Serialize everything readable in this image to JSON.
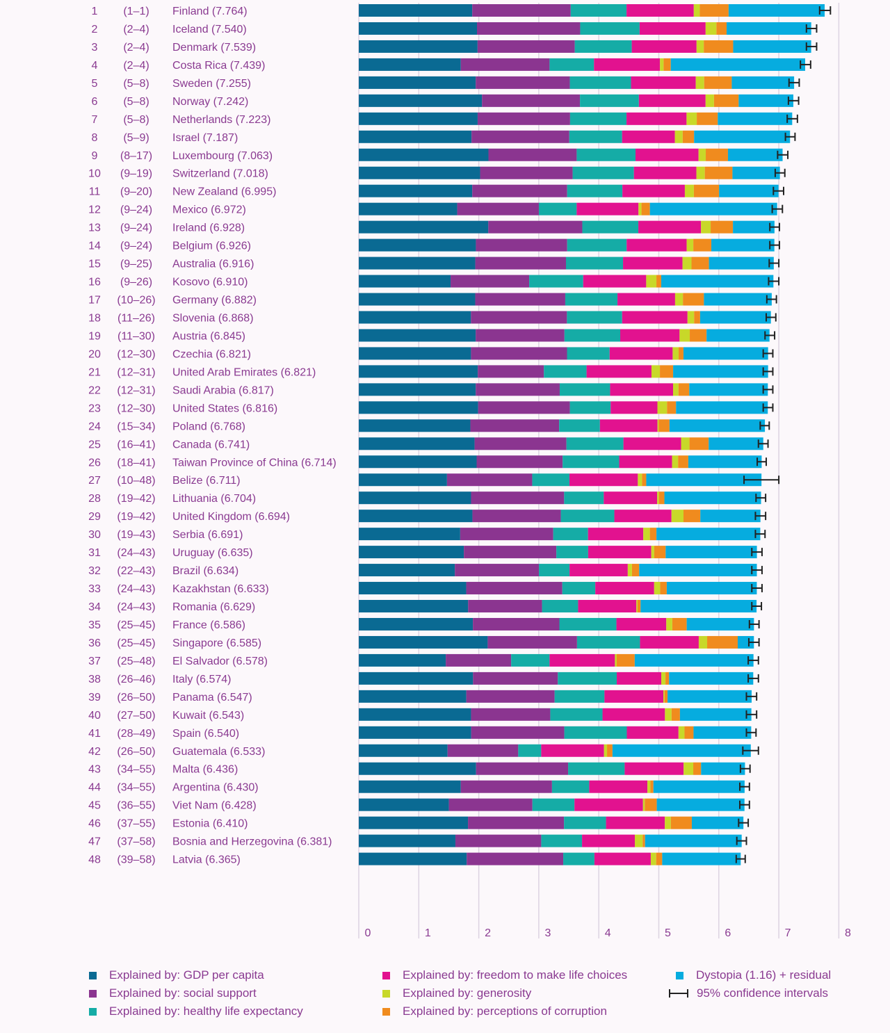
{
  "chart_data": {
    "type": "bar",
    "orientation": "horizontal",
    "stacked": true,
    "title": "",
    "xlabel": "",
    "ylabel": "",
    "xlim": [
      0,
      8
    ],
    "x_ticks": [
      "0",
      "1",
      "2",
      "3",
      "4",
      "5",
      "6",
      "7",
      "8"
    ],
    "components": [
      {
        "key": "gdp",
        "name": "Explained by: GDP per capita",
        "color": "#0a6a93"
      },
      {
        "key": "social",
        "name": "Explained by: social support",
        "color": "#8b3590"
      },
      {
        "key": "health",
        "name": "Explained by: healthy life expectancy",
        "color": "#15aca6"
      },
      {
        "key": "freedom",
        "name": "Explained by: freedom to make life choices",
        "color": "#e2128f"
      },
      {
        "key": "generosity",
        "name": "Explained by: generosity",
        "color": "#c8d829"
      },
      {
        "key": "corruption",
        "name": "Explained by: perceptions of corruption",
        "color": "#f08b1e"
      },
      {
        "key": "dystopia",
        "name": "Dystopia (1.16) + residual",
        "color": "#06acdf"
      }
    ],
    "ci_legend_label": "95% confidence intervals",
    "rows": [
      {
        "rank": "1",
        "range": "(1–1)",
        "label": "Finland (7.764)",
        "score": 7.764,
        "ci": [
          7.68,
          7.86
        ],
        "values": [
          1.89,
          1.64,
          0.93,
          1.12,
          0.1,
          0.48,
          1.6
        ]
      },
      {
        "rank": "2",
        "range": "(2–4)",
        "label": "Iceland (7.540)",
        "score": 7.54,
        "ci": [
          7.46,
          7.63
        ],
        "values": [
          1.97,
          1.72,
          0.99,
          1.1,
          0.18,
          0.17,
          1.41
        ]
      },
      {
        "rank": "3",
        "range": "(2–4)",
        "label": "Denmark (7.539)",
        "score": 7.539,
        "ci": [
          7.46,
          7.63
        ],
        "values": [
          1.98,
          1.62,
          0.95,
          1.08,
          0.12,
          0.49,
          1.3
        ]
      },
      {
        "rank": "4",
        "range": "(2–4)",
        "label": "Costa Rica (7.439)",
        "score": 7.439,
        "ci": [
          7.36,
          7.53
        ],
        "values": [
          1.7,
          1.48,
          0.74,
          1.1,
          0.06,
          0.12,
          2.24
        ]
      },
      {
        "rank": "5",
        "range": "(5–8)",
        "label": "Sweden (7.255)",
        "score": 7.255,
        "ci": [
          7.17,
          7.34
        ],
        "values": [
          1.95,
          1.57,
          1.02,
          1.08,
          0.14,
          0.46,
          1.04
        ]
      },
      {
        "rank": "6",
        "range": "(5–8)",
        "label": "Norway (7.242)",
        "score": 7.242,
        "ci": [
          7.16,
          7.33
        ],
        "values": [
          2.05,
          1.63,
          0.98,
          1.11,
          0.14,
          0.41,
          0.91
        ]
      },
      {
        "rank": "7",
        "range": "(5–8)",
        "label": "Netherlands (7.223)",
        "score": 7.223,
        "ci": [
          7.14,
          7.31
        ],
        "values": [
          1.98,
          1.54,
          0.94,
          1.0,
          0.17,
          0.35,
          1.24
        ]
      },
      {
        "rank": "8",
        "range": "(5–9)",
        "label": "Israel (7.187)",
        "score": 7.187,
        "ci": [
          7.11,
          7.27
        ],
        "values": [
          1.88,
          1.63,
          0.88,
          0.88,
          0.13,
          0.19,
          1.6
        ]
      },
      {
        "rank": "9",
        "range": "(8–17)",
        "label": "Luxembourg (7.063)",
        "score": 7.063,
        "ci": [
          6.98,
          7.15
        ],
        "values": [
          2.16,
          1.47,
          0.98,
          1.05,
          0.12,
          0.37,
          0.91
        ]
      },
      {
        "rank": "10",
        "range": "(9–19)",
        "label": "Switzerland (7.018)",
        "score": 7.018,
        "ci": [
          6.94,
          7.1
        ],
        "values": [
          2.02,
          1.54,
          1.02,
          1.04,
          0.14,
          0.46,
          0.79
        ]
      },
      {
        "rank": "11",
        "range": "(9–20)",
        "label": "New Zealand (6.995)",
        "score": 6.995,
        "ci": [
          6.91,
          7.08
        ],
        "values": [
          1.89,
          1.58,
          0.92,
          1.04,
          0.15,
          0.42,
          0.99
        ]
      },
      {
        "rank": "12",
        "range": "(9–24)",
        "label": "Mexico (6.972)",
        "score": 6.972,
        "ci": [
          6.89,
          7.06
        ],
        "values": [
          1.64,
          1.36,
          0.63,
          1.03,
          0.05,
          0.14,
          2.12
        ]
      },
      {
        "rank": "13",
        "range": "(9–24)",
        "label": "Ireland (6.928)",
        "score": 6.928,
        "ci": [
          6.85,
          7.01
        ],
        "values": [
          2.15,
          1.56,
          0.93,
          1.04,
          0.16,
          0.37,
          0.69
        ]
      },
      {
        "rank": "14",
        "range": "(9–24)",
        "label": "Belgium (6.926)",
        "score": 6.926,
        "ci": [
          6.85,
          7.01
        ],
        "values": [
          1.95,
          1.52,
          0.99,
          1.0,
          0.11,
          0.3,
          1.05
        ]
      },
      {
        "rank": "15",
        "range": "(9–25)",
        "label": "Australia (6.916)",
        "score": 6.916,
        "ci": [
          6.84,
          7.0
        ],
        "values": [
          1.94,
          1.51,
          0.95,
          0.99,
          0.15,
          0.29,
          1.08
        ]
      },
      {
        "rank": "16",
        "range": "(9–26)",
        "label": "Kosovo (6.910)",
        "score": 6.91,
        "ci": [
          6.83,
          7.0
        ],
        "values": [
          1.53,
          1.31,
          0.9,
          1.05,
          0.17,
          0.08,
          1.87
        ]
      },
      {
        "rank": "17",
        "range": "(10–26)",
        "label": "Germany (6.882)",
        "score": 6.882,
        "ci": [
          6.8,
          6.96
        ],
        "values": [
          1.94,
          1.5,
          0.87,
          0.96,
          0.13,
          0.35,
          1.13
        ]
      },
      {
        "rank": "18",
        "range": "(11–26)",
        "label": "Slovenia (6.868)",
        "score": 6.868,
        "ci": [
          6.79,
          6.95
        ],
        "values": [
          1.87,
          1.6,
          0.92,
          1.09,
          0.11,
          0.1,
          1.18
        ]
      },
      {
        "rank": "19",
        "range": "(11–30)",
        "label": "Austria (6.845)",
        "score": 6.845,
        "ci": [
          6.77,
          6.93
        ],
        "values": [
          1.95,
          1.48,
          0.93,
          0.99,
          0.17,
          0.28,
          1.05
        ]
      },
      {
        "rank": "20",
        "range": "(12–30)",
        "label": "Czechia (6.821)",
        "score": 6.821,
        "ci": [
          6.74,
          6.9
        ],
        "values": [
          1.87,
          1.6,
          0.71,
          1.05,
          0.1,
          0.08,
          1.41
        ]
      },
      {
        "rank": "21",
        "range": "(12–31)",
        "label": "United Arab Emirates (6.821)",
        "score": 6.821,
        "ci": [
          6.74,
          6.9
        ],
        "values": [
          1.98,
          1.1,
          0.71,
          1.08,
          0.14,
          0.22,
          1.58
        ]
      },
      {
        "rank": "22",
        "range": "(12–31)",
        "label": "Saudi Arabia (6.817)",
        "score": 6.817,
        "ci": [
          6.74,
          6.9
        ],
        "values": [
          1.95,
          1.4,
          0.84,
          1.05,
          0.09,
          0.18,
          1.31
        ]
      },
      {
        "rank": "23",
        "range": "(12–30)",
        "label": "United States (6.816)",
        "score": 6.816,
        "ci": [
          6.74,
          6.9
        ],
        "values": [
          1.99,
          1.53,
          0.68,
          0.78,
          0.16,
          0.15,
          1.53
        ]
      },
      {
        "rank": "24",
        "range": "(15–34)",
        "label": "Poland (6.768)",
        "score": 6.768,
        "ci": [
          6.69,
          6.84
        ],
        "values": [
          1.86,
          1.48,
          0.68,
          0.96,
          0.02,
          0.18,
          1.59
        ]
      },
      {
        "rank": "25",
        "range": "(16–41)",
        "label": "Canada (6.741)",
        "score": 6.741,
        "ci": [
          6.66,
          6.82
        ],
        "values": [
          1.93,
          1.53,
          0.95,
          0.96,
          0.14,
          0.32,
          0.91
        ]
      },
      {
        "rank": "26",
        "range": "(18–41)",
        "label": "Taiwan Province of China (6.714)",
        "score": 6.714,
        "ci": [
          6.64,
          6.79
        ],
        "values": [
          1.96,
          1.43,
          0.94,
          0.88,
          0.1,
          0.17,
          1.22
        ]
      },
      {
        "rank": "27",
        "range": "(10–48)",
        "label": "Belize (6.711)",
        "score": 6.711,
        "ci": [
          6.42,
          7.0
        ],
        "values": [
          1.47,
          1.42,
          0.62,
          1.14,
          0.07,
          0.07,
          1.92
        ]
      },
      {
        "rank": "28",
        "range": "(19–42)",
        "label": "Lithuania (6.704)",
        "score": 6.704,
        "ci": [
          6.62,
          6.78
        ],
        "values": [
          1.87,
          1.55,
          0.66,
          0.89,
          0.03,
          0.09,
          1.61
        ]
      },
      {
        "rank": "29",
        "range": "(19–42)",
        "label": "United Kingdom (6.694)",
        "score": 6.694,
        "ci": [
          6.61,
          6.78
        ],
        "values": [
          1.89,
          1.47,
          0.89,
          0.95,
          0.2,
          0.28,
          1.0
        ]
      },
      {
        "rank": "30",
        "range": "(19–43)",
        "label": "Serbia (6.691)",
        "score": 6.691,
        "ci": [
          6.61,
          6.77
        ],
        "values": [
          1.69,
          1.55,
          0.58,
          0.92,
          0.11,
          0.11,
          1.73
        ]
      },
      {
        "rank": "31",
        "range": "(24–43)",
        "label": "Uruguay (6.635)",
        "score": 6.635,
        "ci": [
          6.55,
          6.72
        ],
        "values": [
          1.75,
          1.54,
          0.53,
          1.05,
          0.05,
          0.19,
          1.52
        ]
      },
      {
        "rank": "32",
        "range": "(22–43)",
        "label": "Brazil (6.634)",
        "score": 6.634,
        "ci": [
          6.55,
          6.72
        ],
        "values": [
          1.6,
          1.4,
          0.51,
          0.97,
          0.07,
          0.12,
          1.96
        ]
      },
      {
        "rank": "33",
        "range": "(24–43)",
        "label": "Kazakhstan (6.633)",
        "score": 6.633,
        "ci": [
          6.55,
          6.72
        ],
        "values": [
          1.79,
          1.6,
          0.55,
          0.98,
          0.1,
          0.11,
          1.5
        ]
      },
      {
        "rank": "34",
        "range": "(24–43)",
        "label": "Romania (6.629)",
        "score": 6.629,
        "ci": [
          6.55,
          6.71
        ],
        "values": [
          1.82,
          1.23,
          0.6,
          0.97,
          0.02,
          0.05,
          1.93
        ]
      },
      {
        "rank": "35",
        "range": "(25–45)",
        "label": "France (6.586)",
        "score": 6.586,
        "ci": [
          6.51,
          6.67
        ],
        "values": [
          1.9,
          1.44,
          0.95,
          0.83,
          0.1,
          0.24,
          1.12
        ]
      },
      {
        "rank": "36",
        "range": "(25–45)",
        "label": "Singapore (6.585)",
        "score": 6.585,
        "ci": [
          6.5,
          6.67
        ],
        "values": [
          2.15,
          1.49,
          1.05,
          0.98,
          0.14,
          0.51,
          0.27
        ]
      },
      {
        "rank": "37",
        "range": "(25–48)",
        "label": "El Salvador (6.578)",
        "score": 6.578,
        "ci": [
          6.49,
          6.66
        ],
        "values": [
          1.45,
          1.09,
          0.64,
          1.09,
          0.03,
          0.3,
          1.98
        ]
      },
      {
        "rank": "38",
        "range": "(26–46)",
        "label": "Italy (6.574)",
        "score": 6.574,
        "ci": [
          6.49,
          6.66
        ],
        "values": [
          1.9,
          1.41,
          0.98,
          0.74,
          0.07,
          0.06,
          1.4
        ]
      },
      {
        "rank": "39",
        "range": "(26–50)",
        "label": "Panama (6.547)",
        "score": 6.547,
        "ci": [
          6.46,
          6.63
        ],
        "values": [
          1.79,
          1.47,
          0.83,
          0.98,
          0.02,
          0.05,
          1.4
        ]
      },
      {
        "rank": "40",
        "range": "(27–50)",
        "label": "Kuwait (6.543)",
        "score": 6.543,
        "ci": [
          6.46,
          6.63
        ],
        "values": [
          1.87,
          1.32,
          0.87,
          1.04,
          0.11,
          0.14,
          1.19
        ]
      },
      {
        "rank": "41",
        "range": "(28–49)",
        "label": "Spain (6.540)",
        "score": 6.54,
        "ci": [
          6.46,
          6.62
        ],
        "values": [
          1.87,
          1.55,
          1.04,
          0.86,
          0.1,
          0.15,
          0.96
        ]
      },
      {
        "rank": "42",
        "range": "(26–50)",
        "label": "Guatemala (6.533)",
        "score": 6.533,
        "ci": [
          6.4,
          6.66
        ],
        "values": [
          1.47,
          1.17,
          0.38,
          1.04,
          0.05,
          0.09,
          2.29
        ]
      },
      {
        "rank": "43",
        "range": "(34–55)",
        "label": "Malta (6.436)",
        "score": 6.436,
        "ci": [
          6.36,
          6.52
        ],
        "values": [
          1.95,
          1.53,
          0.94,
          0.98,
          0.16,
          0.13,
          0.73
        ]
      },
      {
        "rank": "44",
        "range": "(34–55)",
        "label": "Argentina (6.430)",
        "score": 6.43,
        "ci": [
          6.35,
          6.51
        ],
        "values": [
          1.7,
          1.52,
          0.62,
          0.97,
          0.05,
          0.05,
          1.52
        ]
      },
      {
        "rank": "45",
        "range": "(36–55)",
        "label": "Viet Nam (6.428)",
        "score": 6.428,
        "ci": [
          6.35,
          6.51
        ],
        "values": [
          1.5,
          1.39,
          0.7,
          1.14,
          0.03,
          0.2,
          1.46
        ]
      },
      {
        "rank": "46",
        "range": "(37–55)",
        "label": "Estonia (6.410)",
        "score": 6.41,
        "ci": [
          6.33,
          6.49
        ],
        "values": [
          1.82,
          1.6,
          0.7,
          0.98,
          0.1,
          0.35,
          0.86
        ]
      },
      {
        "rank": "47",
        "range": "(37–58)",
        "label": "Bosnia and Herzegovina (6.381)",
        "score": 6.381,
        "ci": [
          6.3,
          6.46
        ],
        "values": [
          1.61,
          1.43,
          0.68,
          0.88,
          0.13,
          0.04,
          1.61
        ]
      },
      {
        "rank": "48",
        "range": "(39–58)",
        "label": "Latvia (6.365)",
        "score": 6.365,
        "ci": [
          6.29,
          6.44
        ],
        "values": [
          1.8,
          1.61,
          0.52,
          0.94,
          0.09,
          0.1,
          1.31
        ]
      }
    ]
  }
}
